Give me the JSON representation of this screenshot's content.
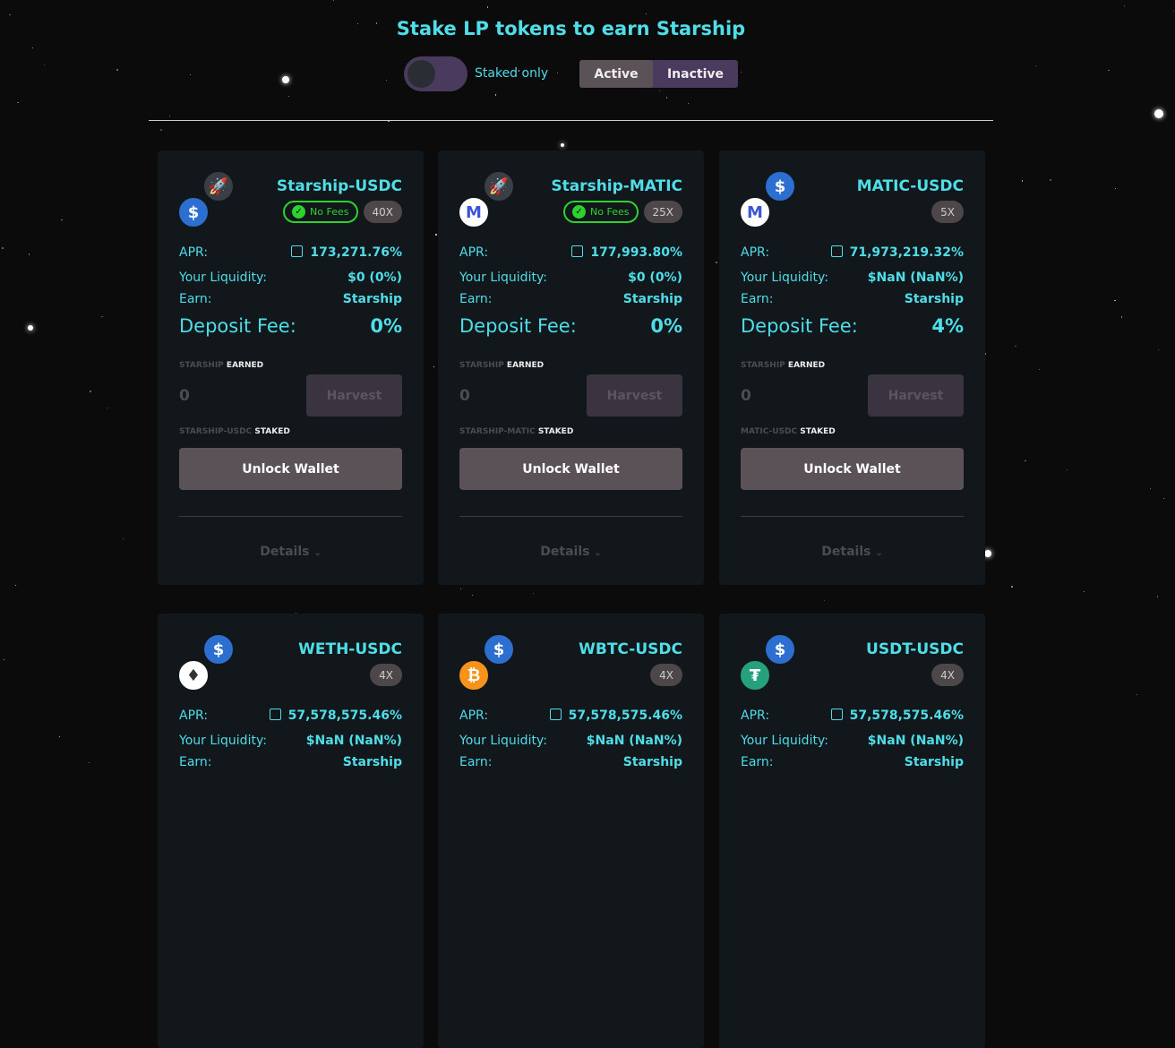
{
  "header": {
    "title": "Stake LP tokens to earn Starship",
    "staked_only_label": "Staked only",
    "tabs": [
      "Active",
      "Inactive"
    ],
    "active_tab": "Active"
  },
  "labels": {
    "apr": "APR:",
    "liquidity": "Your Liquidity:",
    "earn": "Earn:",
    "deposit_fee": "Deposit Fee:",
    "earned_prefix": "STARSHIP",
    "earned_suffix": "EARNED",
    "staked_suffix": "STAKED",
    "harvest": "Harvest",
    "unlock": "Unlock Wallet",
    "details": "Details",
    "no_fees": "No Fees",
    "earned_amount": "0"
  },
  "farms": [
    {
      "name": "Starship-USDC",
      "staked_prefix": "STARSHIP-USDC",
      "multiplier": "40X",
      "no_fees": true,
      "apr": "173,271.76%",
      "liquidity": "$0 (0%)",
      "earn": "Starship",
      "deposit_fee": "0%",
      "tokens": [
        "starship",
        "usdc"
      ]
    },
    {
      "name": "Starship-MATIC",
      "staked_prefix": "STARSHIP-MATIC",
      "multiplier": "25X",
      "no_fees": true,
      "apr": "177,993.80%",
      "liquidity": "$0 (0%)",
      "earn": "Starship",
      "deposit_fee": "0%",
      "tokens": [
        "starship",
        "matic"
      ]
    },
    {
      "name": "MATIC-USDC",
      "staked_prefix": "MATIC-USDC",
      "multiplier": "5X",
      "no_fees": false,
      "apr": "71,973,219.32%",
      "liquidity": "$NaN (NaN%)",
      "earn": "Starship",
      "deposit_fee": "4%",
      "tokens": [
        "usdc",
        "matic"
      ]
    },
    {
      "name": "WETH-USDC",
      "multiplier": "4X",
      "no_fees": false,
      "apr": "57,578,575.46%",
      "liquidity": "$NaN (NaN%)",
      "earn": "Starship",
      "tokens": [
        "usdc",
        "weth"
      ]
    },
    {
      "name": "WBTC-USDC",
      "multiplier": "4X",
      "no_fees": false,
      "apr": "57,578,575.46%",
      "liquidity": "$NaN (NaN%)",
      "earn": "Starship",
      "tokens": [
        "usdc",
        "wbtc"
      ]
    },
    {
      "name": "USDT-USDC",
      "multiplier": "4X",
      "no_fees": false,
      "apr": "57,578,575.46%",
      "liquidity": "$NaN (NaN%)",
      "earn": "Starship",
      "tokens": [
        "usdc",
        "usdt"
      ]
    }
  ],
  "colors": {
    "accent": "#4fdde8",
    "no_fees": "#2ed22e",
    "card": "#11171b"
  }
}
